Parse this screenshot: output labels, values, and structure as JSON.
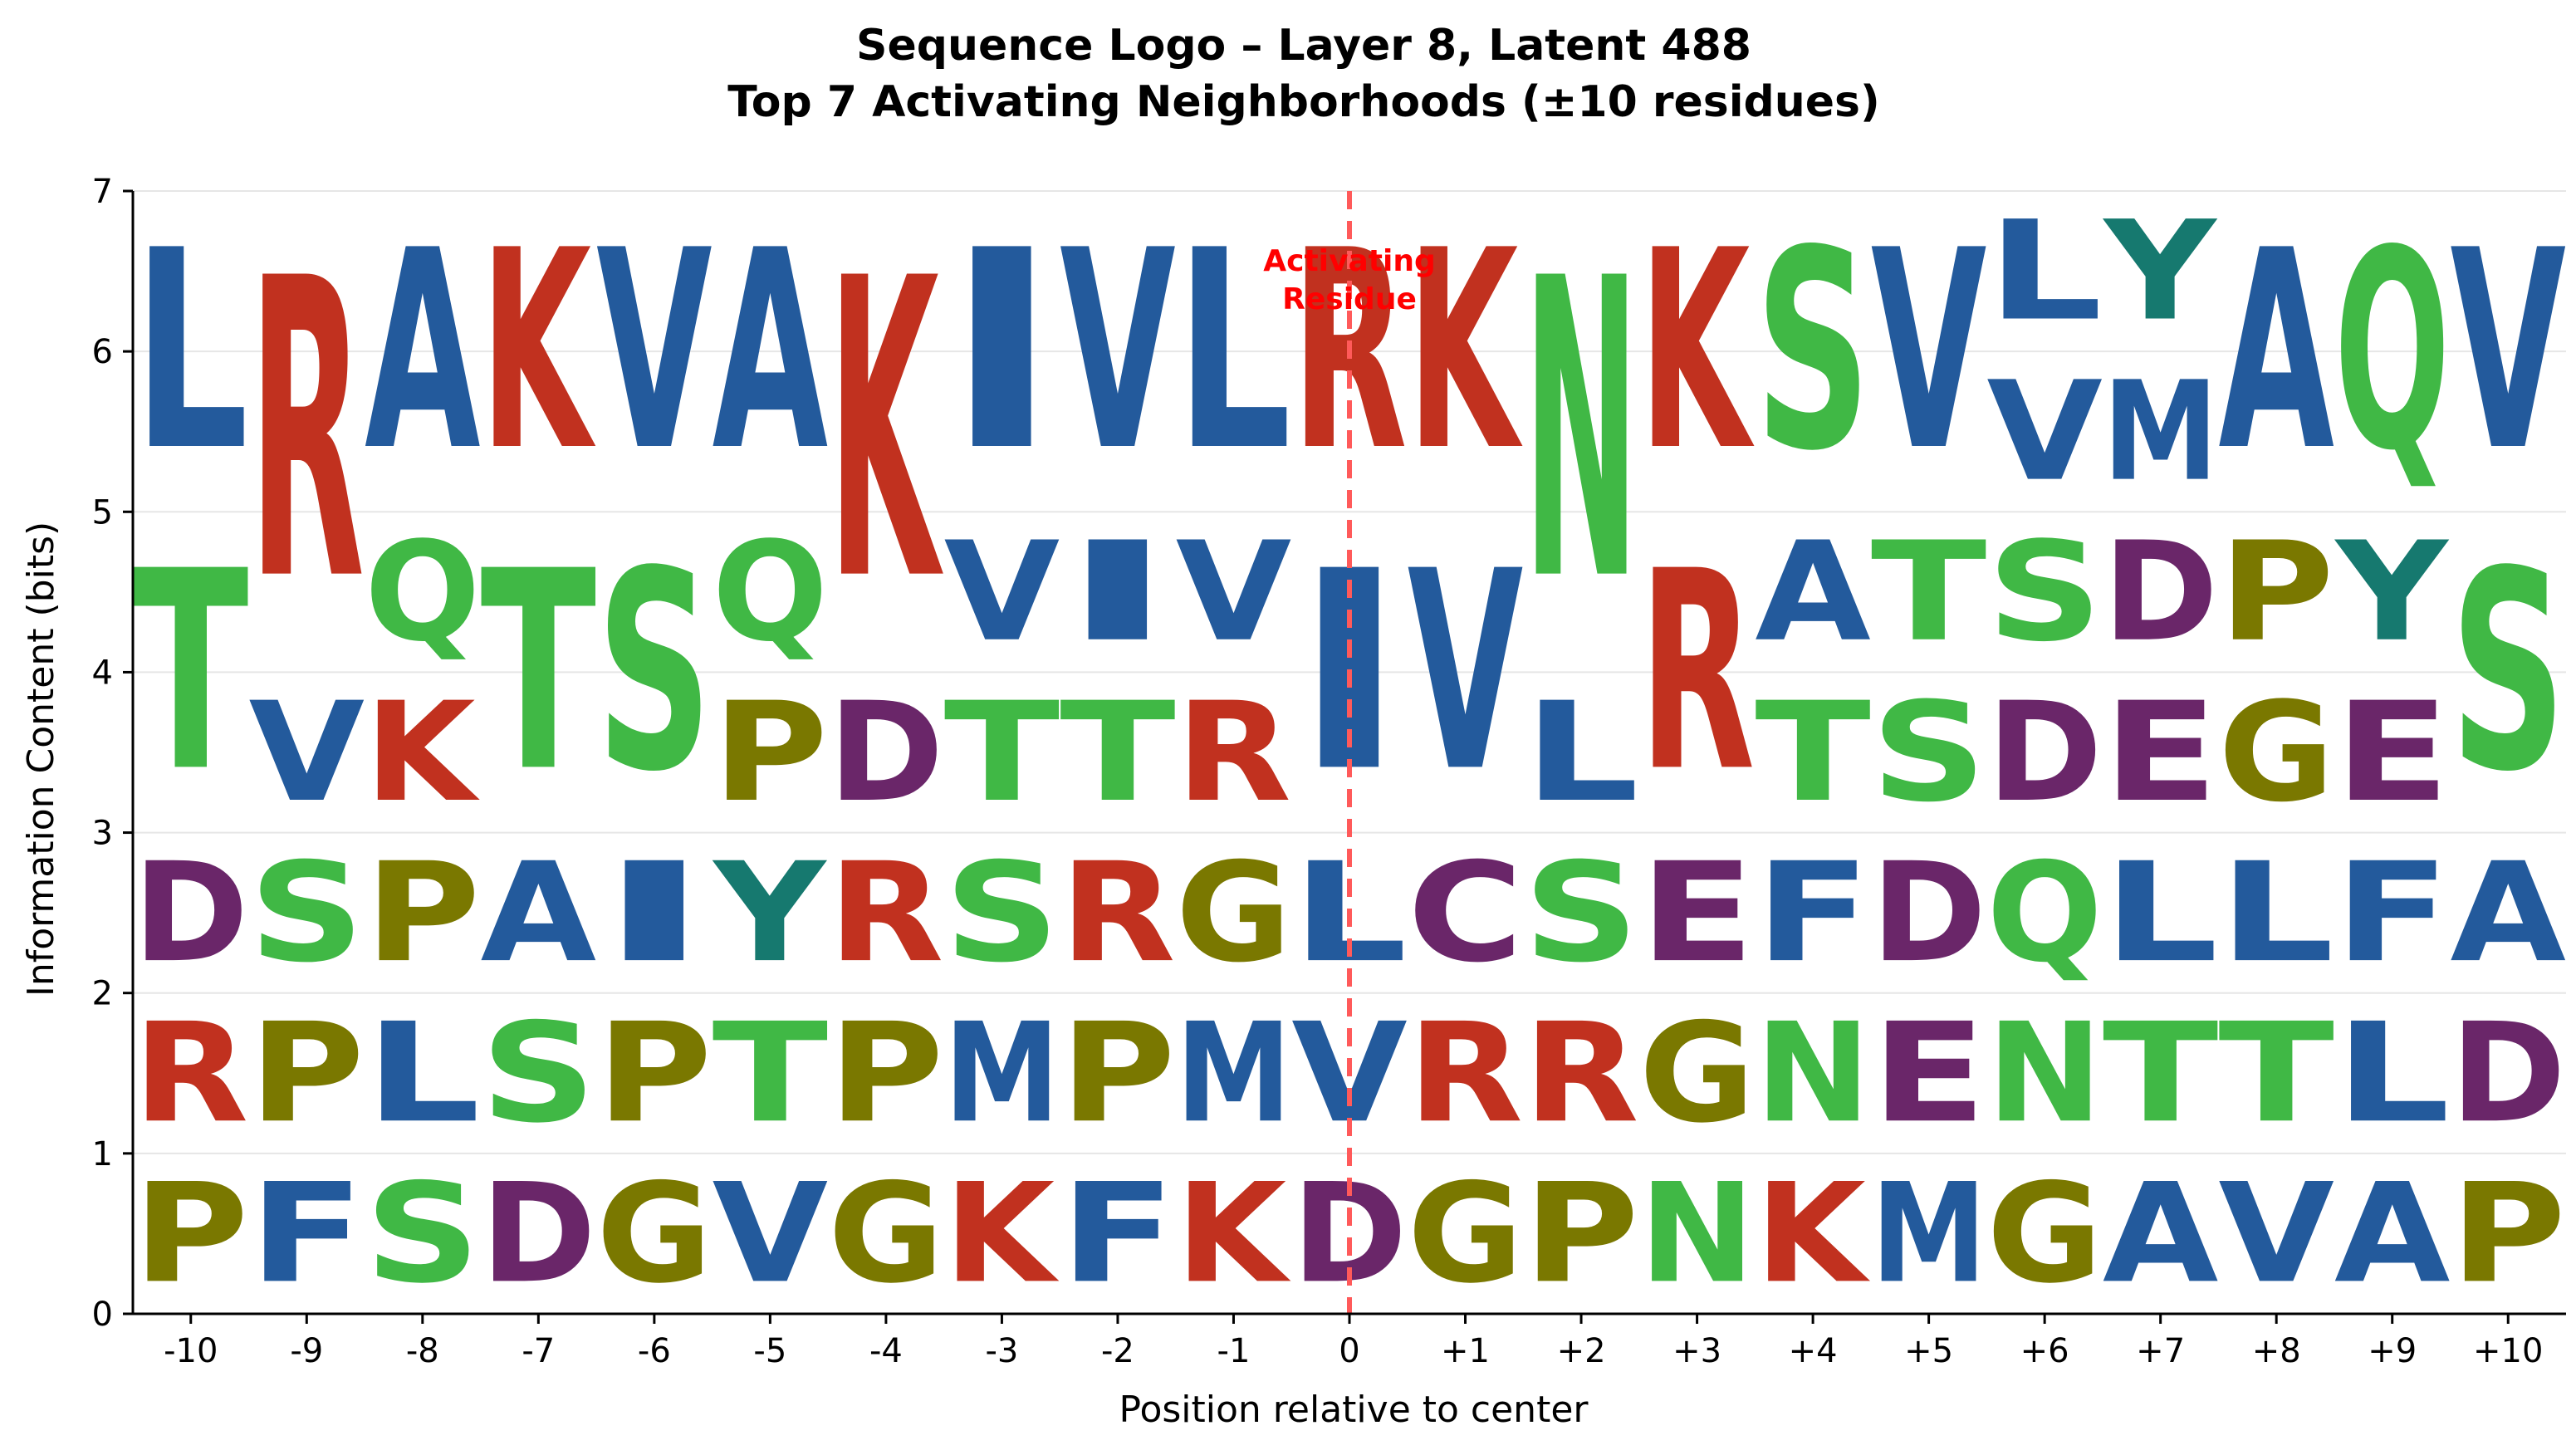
{
  "chart_data": {
    "type": "sequence-logo",
    "title": "Sequence Logo – Layer 8, Latent 488",
    "subtitle": "Top 7 Activating Neighborhoods (±10 residues)",
    "xlabel": "Position relative to center",
    "ylabel": "Information Content (bits)",
    "ylim": [
      0,
      7
    ],
    "yticks": [
      "0",
      "1",
      "2",
      "3",
      "4",
      "5",
      "6",
      "7"
    ],
    "grid": "horizontal",
    "positions": [
      "-10",
      "-9",
      "-8",
      "-7",
      "-6",
      "-5",
      "-4",
      "-3",
      "-2",
      "-1",
      "0",
      "+1",
      "+2",
      "+3",
      "+4",
      "+5",
      "+6",
      "+7",
      "+8",
      "+9",
      "+10"
    ],
    "columns": [
      [
        {
          "aa": "P",
          "bits": 1
        },
        {
          "aa": "R",
          "bits": 1
        },
        {
          "aa": "D",
          "bits": 1
        },
        {
          "aa": "T",
          "bits": 2
        },
        {
          "aa": "L",
          "bits": 2
        }
      ],
      [
        {
          "aa": "F",
          "bits": 1
        },
        {
          "aa": "P",
          "bits": 1
        },
        {
          "aa": "S",
          "bits": 1
        },
        {
          "aa": "V",
          "bits": 1
        },
        {
          "aa": "R",
          "bits": 3
        }
      ],
      [
        {
          "aa": "S",
          "bits": 1
        },
        {
          "aa": "L",
          "bits": 1
        },
        {
          "aa": "P",
          "bits": 1
        },
        {
          "aa": "K",
          "bits": 1
        },
        {
          "aa": "Q",
          "bits": 1
        },
        {
          "aa": "A",
          "bits": 2
        }
      ],
      [
        {
          "aa": "D",
          "bits": 1
        },
        {
          "aa": "S",
          "bits": 1
        },
        {
          "aa": "A",
          "bits": 1
        },
        {
          "aa": "T",
          "bits": 2
        },
        {
          "aa": "K",
          "bits": 2
        }
      ],
      [
        {
          "aa": "G",
          "bits": 1
        },
        {
          "aa": "P",
          "bits": 1
        },
        {
          "aa": "I",
          "bits": 1
        },
        {
          "aa": "S",
          "bits": 2
        },
        {
          "aa": "V",
          "bits": 2
        }
      ],
      [
        {
          "aa": "V",
          "bits": 1
        },
        {
          "aa": "T",
          "bits": 1
        },
        {
          "aa": "Y",
          "bits": 1
        },
        {
          "aa": "P",
          "bits": 1
        },
        {
          "aa": "Q",
          "bits": 1
        },
        {
          "aa": "A",
          "bits": 2
        }
      ],
      [
        {
          "aa": "G",
          "bits": 1
        },
        {
          "aa": "P",
          "bits": 1
        },
        {
          "aa": "R",
          "bits": 1
        },
        {
          "aa": "D",
          "bits": 1
        },
        {
          "aa": "K",
          "bits": 3
        }
      ],
      [
        {
          "aa": "K",
          "bits": 1
        },
        {
          "aa": "M",
          "bits": 1
        },
        {
          "aa": "S",
          "bits": 1
        },
        {
          "aa": "T",
          "bits": 1
        },
        {
          "aa": "V",
          "bits": 1
        },
        {
          "aa": "I",
          "bits": 2
        }
      ],
      [
        {
          "aa": "F",
          "bits": 1
        },
        {
          "aa": "P",
          "bits": 1
        },
        {
          "aa": "R",
          "bits": 1
        },
        {
          "aa": "T",
          "bits": 1
        },
        {
          "aa": "I",
          "bits": 1
        },
        {
          "aa": "V",
          "bits": 2
        }
      ],
      [
        {
          "aa": "K",
          "bits": 1
        },
        {
          "aa": "M",
          "bits": 1
        },
        {
          "aa": "G",
          "bits": 1
        },
        {
          "aa": "R",
          "bits": 1
        },
        {
          "aa": "V",
          "bits": 1
        },
        {
          "aa": "L",
          "bits": 2
        }
      ],
      [
        {
          "aa": "D",
          "bits": 1
        },
        {
          "aa": "V",
          "bits": 1
        },
        {
          "aa": "L",
          "bits": 1
        },
        {
          "aa": "I",
          "bits": 2
        },
        {
          "aa": "R",
          "bits": 2
        }
      ],
      [
        {
          "aa": "G",
          "bits": 1
        },
        {
          "aa": "R",
          "bits": 1
        },
        {
          "aa": "C",
          "bits": 1
        },
        {
          "aa": "V",
          "bits": 2
        },
        {
          "aa": "K",
          "bits": 2
        }
      ],
      [
        {
          "aa": "P",
          "bits": 1
        },
        {
          "aa": "R",
          "bits": 1
        },
        {
          "aa": "S",
          "bits": 1
        },
        {
          "aa": "L",
          "bits": 1
        },
        {
          "aa": "N",
          "bits": 3
        }
      ],
      [
        {
          "aa": "N",
          "bits": 1
        },
        {
          "aa": "G",
          "bits": 1
        },
        {
          "aa": "E",
          "bits": 1
        },
        {
          "aa": "R",
          "bits": 2
        },
        {
          "aa": "K",
          "bits": 2
        }
      ],
      [
        {
          "aa": "K",
          "bits": 1
        },
        {
          "aa": "N",
          "bits": 1
        },
        {
          "aa": "F",
          "bits": 1
        },
        {
          "aa": "T",
          "bits": 1
        },
        {
          "aa": "A",
          "bits": 1
        },
        {
          "aa": "S",
          "bits": 2
        }
      ],
      [
        {
          "aa": "M",
          "bits": 1
        },
        {
          "aa": "E",
          "bits": 1
        },
        {
          "aa": "D",
          "bits": 1
        },
        {
          "aa": "S",
          "bits": 1
        },
        {
          "aa": "T",
          "bits": 1
        },
        {
          "aa": "V",
          "bits": 2
        }
      ],
      [
        {
          "aa": "G",
          "bits": 1
        },
        {
          "aa": "N",
          "bits": 1
        },
        {
          "aa": "Q",
          "bits": 1
        },
        {
          "aa": "D",
          "bits": 1
        },
        {
          "aa": "S",
          "bits": 1
        },
        {
          "aa": "V",
          "bits": 1
        },
        {
          "aa": "L",
          "bits": 1
        }
      ],
      [
        {
          "aa": "A",
          "bits": 1
        },
        {
          "aa": "T",
          "bits": 1
        },
        {
          "aa": "L",
          "bits": 1
        },
        {
          "aa": "E",
          "bits": 1
        },
        {
          "aa": "D",
          "bits": 1
        },
        {
          "aa": "M",
          "bits": 1
        },
        {
          "aa": "Y",
          "bits": 1
        }
      ],
      [
        {
          "aa": "V",
          "bits": 1
        },
        {
          "aa": "T",
          "bits": 1
        },
        {
          "aa": "L",
          "bits": 1
        },
        {
          "aa": "G",
          "bits": 1
        },
        {
          "aa": "P",
          "bits": 1
        },
        {
          "aa": "A",
          "bits": 2
        }
      ],
      [
        {
          "aa": "A",
          "bits": 1
        },
        {
          "aa": "L",
          "bits": 1
        },
        {
          "aa": "F",
          "bits": 1
        },
        {
          "aa": "E",
          "bits": 1
        },
        {
          "aa": "Y",
          "bits": 1
        },
        {
          "aa": "Q",
          "bits": 2
        }
      ],
      [
        {
          "aa": "P",
          "bits": 1
        },
        {
          "aa": "D",
          "bits": 1
        },
        {
          "aa": "A",
          "bits": 1
        },
        {
          "aa": "S",
          "bits": 2
        },
        {
          "aa": "V",
          "bits": 2
        }
      ]
    ],
    "colors": {
      "A": "#235a9c",
      "V": "#235a9c",
      "L": "#235a9c",
      "I": "#235a9c",
      "M": "#235a9c",
      "F": "#235a9c",
      "K": "#c1311f",
      "R": "#c1311f",
      "S": "#40b845",
      "T": "#40b845",
      "Q": "#40b845",
      "N": "#40b845",
      "D": "#6a2669",
      "E": "#6a2669",
      "P": "#7a7800",
      "G": "#7a7800",
      "Y": "#16796f",
      "C": "#6a2669"
    },
    "annotation": {
      "label_line1": "Activating",
      "label_line2": "Residue",
      "position": "0",
      "color": "#ff0000",
      "line_color": "#ff5a5a"
    }
  }
}
